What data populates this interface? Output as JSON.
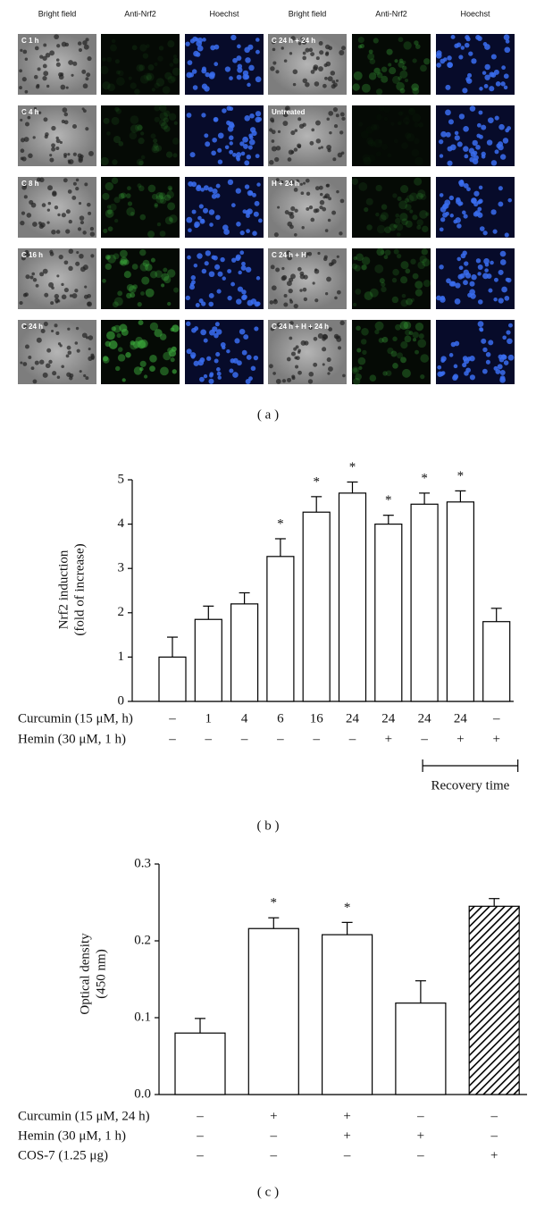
{
  "panel_a": {
    "column_headers": [
      "Bright field",
      "Anti-Nrf2",
      "Hoechst",
      "Bright field",
      "Anti-Nrf2",
      "Hoechst"
    ],
    "rows": [
      {
        "left": "C 1 h",
        "right": "C 24 h + 24 h"
      },
      {
        "left": "C 4 h",
        "right": "Untreated"
      },
      {
        "left": "C 8 h",
        "right": "H + 24 h"
      },
      {
        "left": "C 16 h",
        "right": "C 24 h + H"
      },
      {
        "left": "C 24 h",
        "right": "C 24 h + H + 24 h"
      }
    ],
    "caption": "( a )"
  },
  "chart_data": [
    {
      "type": "bar",
      "caption": "( b )",
      "ylabel": [
        "Nrf2 induction",
        "(fold of increase)"
      ],
      "category_rows": [
        {
          "label": "Curcumin (15 μM, h)",
          "values": [
            "–",
            "1",
            "4",
            "6",
            "16",
            "24",
            "24",
            "24",
            "24",
            "–"
          ]
        },
        {
          "label": "Hemin (30 μM, 1 h)",
          "values": [
            "–",
            "–",
            "–",
            "–",
            "–",
            "–",
            "+",
            "–",
            "+",
            "+"
          ]
        }
      ],
      "values": [
        1.0,
        1.85,
        2.2,
        3.27,
        4.27,
        4.7,
        4.0,
        4.45,
        4.5,
        1.8
      ],
      "errors": [
        0.45,
        0.3,
        0.25,
        0.4,
        0.35,
        0.25,
        0.2,
        0.25,
        0.25,
        0.3
      ],
      "significance": [
        null,
        null,
        null,
        "*",
        "*",
        "*",
        "*",
        "*",
        "*",
        null
      ],
      "colors": [
        "#ffffff",
        "#ffffff",
        "#ffffff",
        "#ffffff",
        "#ffffff",
        "#ffffff",
        "#ffffff",
        "#ffffff",
        "#ffffff",
        "#ffffff"
      ],
      "hatch": [
        false,
        false,
        false,
        false,
        false,
        false,
        false,
        false,
        false,
        false
      ],
      "annotations": [
        "Recovery time"
      ],
      "ylim": [
        0,
        5
      ],
      "yticks": [
        0,
        1,
        2,
        3,
        4,
        5
      ]
    },
    {
      "type": "bar",
      "caption": "( c )",
      "ylabel": [
        "Optical density",
        "(450 nm)"
      ],
      "category_rows": [
        {
          "label": "Curcumin (15 μM, 24 h)",
          "values": [
            "–",
            "+",
            "+",
            "–",
            "–"
          ]
        },
        {
          "label": "Hemin (30 μM, 1 h)",
          "values": [
            "–",
            "–",
            "+",
            "+",
            "–"
          ]
        },
        {
          "label": "COS-7 (1.25 μg)",
          "values": [
            "–",
            "–",
            "–",
            "–",
            "+"
          ]
        }
      ],
      "values": [
        0.08,
        0.216,
        0.208,
        0.119,
        0.245
      ],
      "errors": [
        0.019,
        0.014,
        0.016,
        0.029,
        0.01
      ],
      "significance": [
        null,
        "*",
        "*",
        null,
        null
      ],
      "colors": [
        "#ffffff",
        "#ffffff",
        "#ffffff",
        "#ffffff",
        "#ffffff"
      ],
      "hatch": [
        false,
        false,
        false,
        false,
        true
      ],
      "ylim": [
        0,
        0.3
      ],
      "yticks": [
        {
          "value": 0,
          "label": "0.0"
        },
        0.1,
        0.2,
        0.3
      ]
    }
  ]
}
